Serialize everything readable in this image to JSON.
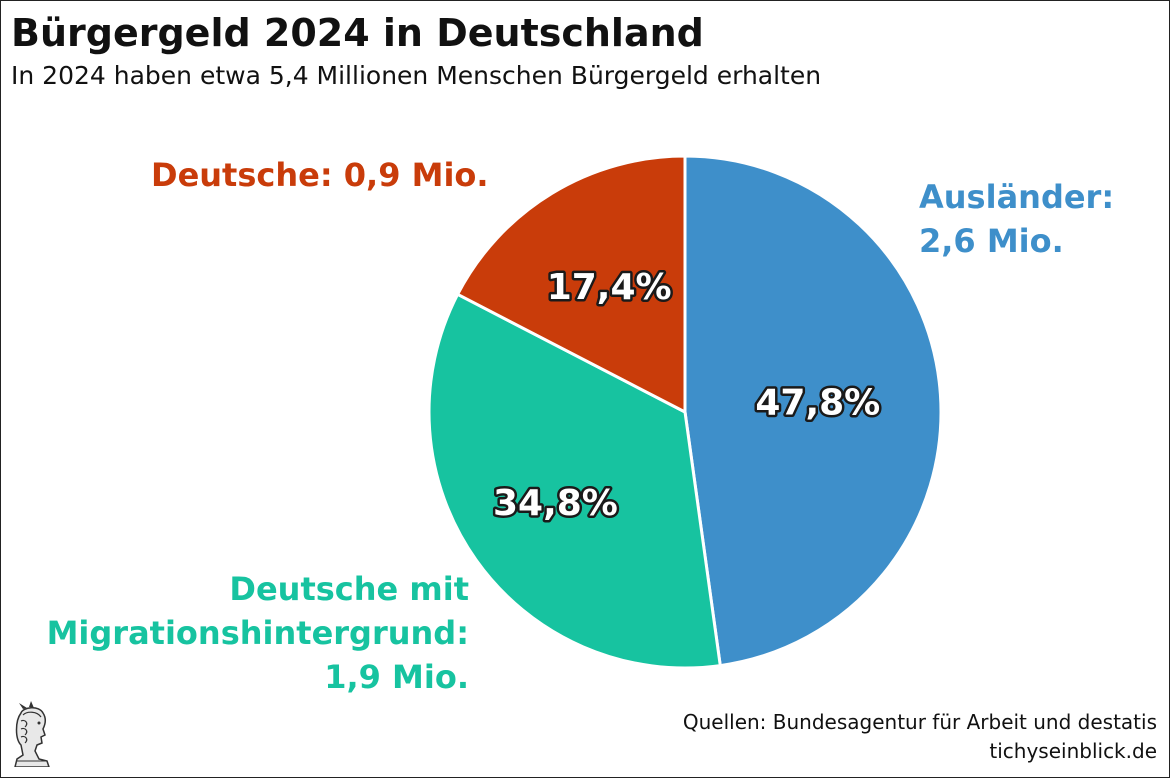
{
  "title": "Bürgergeld 2024 in Deutschland",
  "subtitle": "In 2024 haben etwa 5,4 Millionen Menschen Bürgergeld erhalten",
  "colors": {
    "auslaender": "#3e8fca",
    "migration": "#17c3a0",
    "deutsche": "#c93c0a"
  },
  "chart_data": {
    "type": "pie",
    "title": "Bürgergeld 2024 in Deutschland",
    "categories": [
      "Ausländer",
      "Deutsche mit Migrationshintergrund",
      "Deutsche"
    ],
    "values": [
      47.8,
      34.8,
      17.4
    ],
    "value_labels": [
      "47,8%",
      "34,8%",
      "17,4%"
    ],
    "category_labels": [
      [
        "Ausländer:",
        "2,6 Mio."
      ],
      [
        "Deutsche mit",
        "Migrationshintergrund:",
        "1,9 Mio."
      ],
      [
        "Deutsche: 0,9 Mio."
      ]
    ],
    "colors": [
      "#3e8fca",
      "#17c3a0",
      "#c93c0a"
    ],
    "start": "12 o'clock",
    "direction": "clockwise"
  },
  "source": {
    "line1": "Quellen: Bundesagentur für Arbeit und destatis",
    "line2": "tichyseinblick.de"
  },
  "logo": {
    "icon": "mercury-head-logo"
  }
}
